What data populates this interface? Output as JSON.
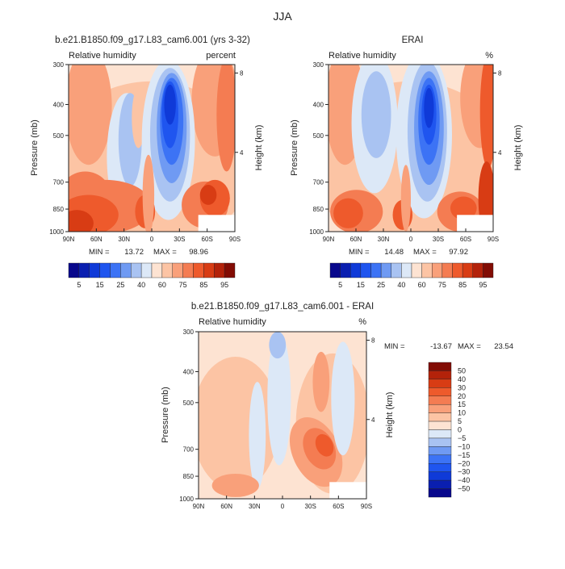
{
  "figure": {
    "title": "JJA",
    "top_left_title": "b.e21.B1850.f09_g17.L83_cam6.001 (yrs 3-32)",
    "top_right_title": "ERAI",
    "bottom_title": "b.e21.B1850.f09_g17.L83_cam6.001 - ERAI"
  },
  "chart_data": [
    {
      "type": "heatmap",
      "id": "model",
      "title": "b.e21.B1850.f09_g17.L83_cam6.001 (yrs 3-32)",
      "variable": "Relative humidity",
      "units": "percent",
      "xlabel": "",
      "ylabel": "Pressure (mb)",
      "y2label": "Height (km)",
      "x_ticks": [
        "90N",
        "60N",
        "30N",
        "0",
        "30S",
        "60S",
        "90S"
      ],
      "x_range": [
        90,
        -90
      ],
      "y_ticks": [
        300,
        400,
        500,
        700,
        850,
        1000
      ],
      "y_range": [
        1000,
        300
      ],
      "y2_ticks": [
        4,
        8
      ],
      "min_label": "MIN = ",
      "min": 13.72,
      "max_label": "MAX = ",
      "max": 98.96,
      "levels": [
        5,
        10,
        15,
        20,
        25,
        30,
        40,
        50,
        60,
        70,
        75,
        80,
        85,
        90,
        95
      ],
      "colorbar_labels": [
        "5",
        "15",
        "25",
        "40",
        "60",
        "75",
        "85",
        "95"
      ]
    },
    {
      "type": "heatmap",
      "id": "erai",
      "title": "ERAI",
      "variable": "Relative humidity",
      "units": "%",
      "xlabel": "",
      "ylabel": "Pressure (mb)",
      "y2label": "Height (km)",
      "x_ticks": [
        "90N",
        "60N",
        "30N",
        "0",
        "30S",
        "60S",
        "90S"
      ],
      "x_range": [
        90,
        -90
      ],
      "y_ticks": [
        300,
        400,
        500,
        700,
        850,
        1000
      ],
      "y_range": [
        1000,
        300
      ],
      "y2_ticks": [
        4,
        8
      ],
      "min_label": "MIN = ",
      "min": 14.48,
      "max_label": "MAX = ",
      "max": 97.92,
      "levels": [
        5,
        10,
        15,
        20,
        25,
        30,
        40,
        50,
        60,
        70,
        75,
        80,
        85,
        90,
        95
      ],
      "colorbar_labels": [
        "5",
        "15",
        "25",
        "40",
        "60",
        "75",
        "85",
        "95"
      ]
    },
    {
      "type": "heatmap",
      "id": "diff",
      "title": "b.e21.B1850.f09_g17.L83_cam6.001 - ERAI",
      "variable": "Relative humidity",
      "units": "%",
      "xlabel": "",
      "ylabel": "Pressure (mb)",
      "y2label": "Height (km)",
      "x_ticks": [
        "90N",
        "60N",
        "30N",
        "0",
        "30S",
        "60S",
        "90S"
      ],
      "x_range": [
        90,
        -90
      ],
      "y_ticks": [
        300,
        400,
        500,
        700,
        850,
        1000
      ],
      "y_range": [
        1000,
        300
      ],
      "y2_ticks": [
        4,
        8
      ],
      "min_label": "MIN = ",
      "min": -13.67,
      "max_label": "MAX = ",
      "max": 23.54,
      "levels": [
        -50,
        -40,
        -30,
        -20,
        -15,
        -10,
        -5,
        0,
        5,
        10,
        15,
        20,
        30,
        40,
        50
      ],
      "colorbar_labels": [
        "50",
        "40",
        "30",
        "20",
        "15",
        "10",
        "5",
        "0",
        "−5",
        "−10",
        "−15",
        "−20",
        "−30",
        "−40",
        "−50"
      ]
    }
  ],
  "colors": {
    "scale16": [
      "#08088c",
      "#0a1fb0",
      "#0f3ad8",
      "#1f55ef",
      "#3c73f5",
      "#6f9af3",
      "#a9c3f2",
      "#dce8f7",
      "#fde3d2",
      "#fcc4a4",
      "#f9a07a",
      "#f47c52",
      "#ee5a2c",
      "#d83c14",
      "#b3220a",
      "#820c04"
    ]
  }
}
